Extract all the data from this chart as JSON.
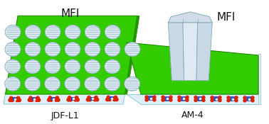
{
  "bg_color": "#ffffff",
  "green_color": "#33cc00",
  "green_edge": "#228800",
  "green_side": "#229900",
  "crystal_fill": "#dce8f0",
  "crystal_edge": "#88aabb",
  "crystal_stripe": "#99bbcc",
  "layer_bg": "#e0f0f8",
  "layer_edge": "#99ccdd",
  "red_atom": "#dd2200",
  "blue_atom": "#2244cc",
  "mfi_fill": "#d0dce8",
  "mfi_fill2": "#c8d8e4",
  "mfi_fill3": "#e0eaf2",
  "mfi_edge": "#88aabb",
  "text_color": "#111111",
  "label_left": "JDF-L1",
  "label_right": "AM-4",
  "label_mfi": "MFI"
}
